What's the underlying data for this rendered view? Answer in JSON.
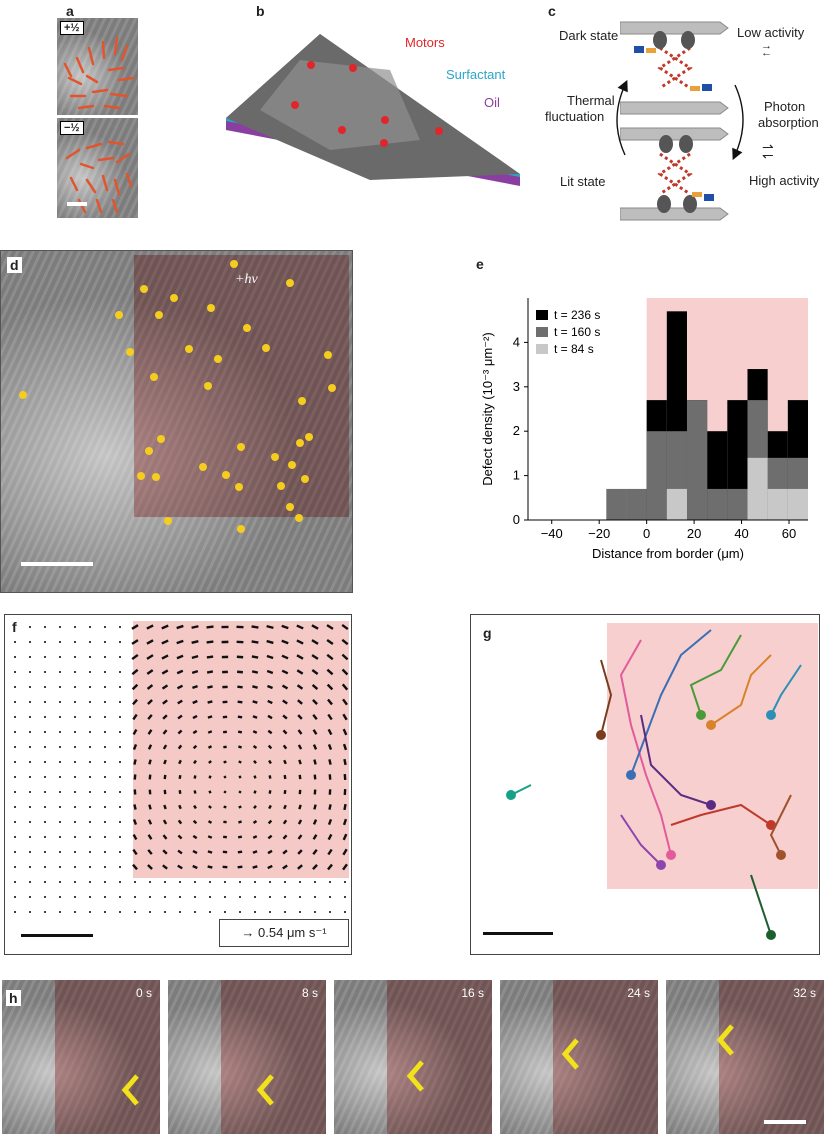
{
  "panels": {
    "a": {
      "label": "a",
      "plus": "+½",
      "minus": "−½"
    },
    "b": {
      "label": "b",
      "motors": "Motors",
      "surfactant": "Surfactant",
      "oil": "Oil",
      "colors": {
        "motors": "#e0262a",
        "surfactant": "#2ba6c9",
        "oil": "#8a3fa0"
      }
    },
    "c": {
      "label": "c",
      "dark_state": "Dark state",
      "low_activity": "Low activity",
      "thermal_line1": "Thermal",
      "thermal_line2": "fluctuation",
      "photon_line1": "Photon",
      "photon_line2": "absorption",
      "lit_state": "Lit state",
      "high_activity": "High activity"
    },
    "d": {
      "label": "d",
      "hv": "+hν"
    },
    "e": {
      "label": "e"
    },
    "f": {
      "label": "f",
      "scale_text": "0.54 μm s⁻¹"
    },
    "g": {
      "label": "g"
    },
    "h": {
      "label": "h",
      "frames": [
        "0 s",
        "8 s",
        "16 s",
        "24 s",
        "32 s"
      ]
    }
  },
  "chart_data": {
    "type": "bar",
    "xlabel": "Distance from border (μm)",
    "ylabel": "Defect density (10⁻³ μm⁻²)",
    "xlim": [
      -50,
      68
    ],
    "ylim": [
      0,
      5
    ],
    "xticks": [
      -40,
      -20,
      0,
      20,
      40,
      60
    ],
    "yticks": [
      0,
      1,
      2,
      3,
      4
    ],
    "bin_edges": [
      -17,
      -8.5,
      0,
      8.5,
      17,
      25.5,
      34,
      42.5,
      51,
      59.5,
      68
    ],
    "series": [
      {
        "name": "t = 236 s",
        "color": "#000000",
        "values": [
          0,
          0,
          2.7,
          4.7,
          2.7,
          2.0,
          2.7,
          3.4,
          2.0,
          2.7
        ]
      },
      {
        "name": "t = 160 s",
        "color": "#6e6e6e",
        "values": [
          0.7,
          0.7,
          2.0,
          2.0,
          2.7,
          0.7,
          0.7,
          2.7,
          1.4,
          1.4
        ]
      },
      {
        "name": "t = 84 s",
        "color": "#c8c8c8",
        "values": [
          0,
          0,
          0,
          0.7,
          0,
          0,
          0,
          1.4,
          0.7,
          0.7
        ]
      }
    ],
    "shaded_region": [
      0,
      68
    ]
  }
}
